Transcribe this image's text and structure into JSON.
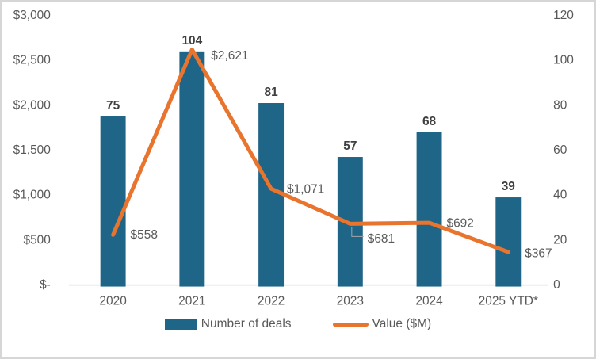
{
  "chart_data": {
    "type": "bar+line combo",
    "title": "",
    "categories": [
      "2020",
      "2021",
      "2022",
      "2023",
      "2024",
      "2025 YTD*"
    ],
    "series": [
      {
        "name": "Number of deals",
        "type": "bar",
        "axis": "right",
        "values": [
          75,
          104,
          81,
          57,
          68,
          39
        ],
        "labels": [
          "75",
          "104",
          "81",
          "57",
          "68",
          "39"
        ],
        "color": "#1F6587"
      },
      {
        "name": "Value ($M)",
        "type": "line",
        "axis": "left",
        "values": [
          558,
          2621,
          1071,
          681,
          692,
          367
        ],
        "labels": [
          "$558",
          "$2,621",
          "$1,071",
          "$681",
          "$692",
          "$367"
        ],
        "color": "#E8742E"
      }
    ],
    "left_axis": {
      "ticks": [
        "$-",
        "$500",
        "$1,000",
        "$1,500",
        "$2,000",
        "$2,500",
        "$3,000"
      ],
      "min": 0,
      "max": 3000
    },
    "right_axis": {
      "ticks": [
        "0",
        "20",
        "40",
        "60",
        "80",
        "100",
        "120"
      ],
      "min": 0,
      "max": 120
    },
    "legend_position": "bottom",
    "grid": "off",
    "colors": {
      "bar": "#1F6587",
      "line": "#E8742E",
      "axis_text": "#595959",
      "bar_label_text": "#3F3F3F",
      "value_label_text": "#595959",
      "axis_line": "#D9D9D9",
      "leader_line": "#A6A6A6"
    }
  }
}
